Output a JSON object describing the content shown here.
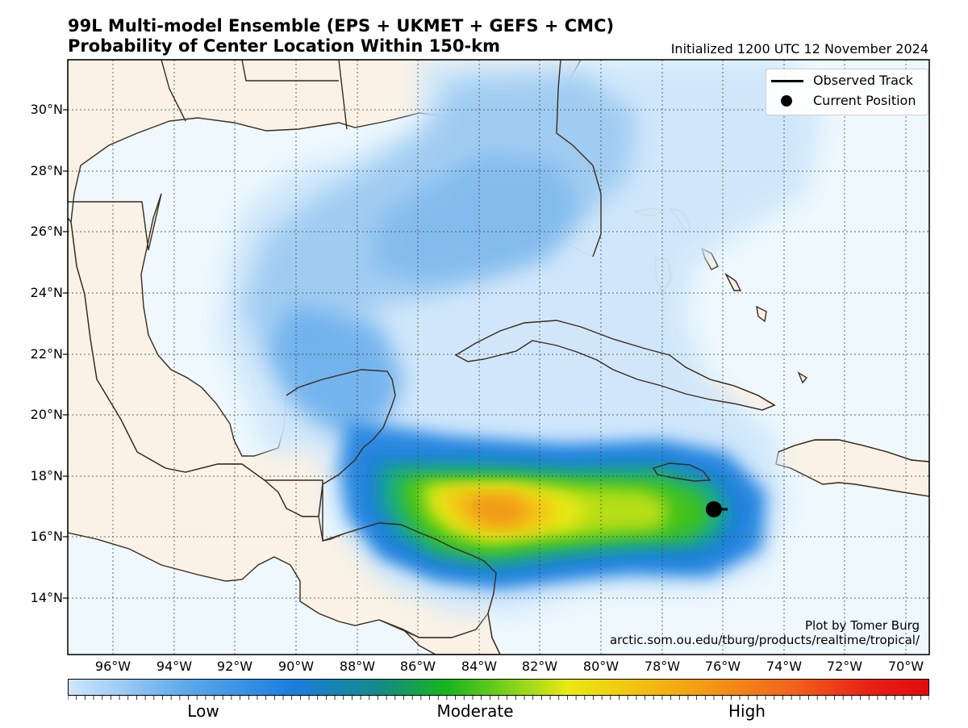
{
  "title_line1": "99L Multi-model Ensemble (EPS + UKMET + GEFS + CMC)",
  "title_line2": "Probability of Center Location Within 150-km",
  "initialized": "Initialized 1200 UTC 12 November 2024",
  "legend": {
    "observed_track": "Observed Track",
    "current_position": "Current Position"
  },
  "credit": {
    "line1": "Plot by Tomer Burg",
    "line2": "arctic.som.ou.edu/tburg/products/realtime/tropical/"
  },
  "lat_labels": [
    "30°N",
    "28°N",
    "26°N",
    "24°N",
    "22°N",
    "20°N",
    "18°N",
    "16°N",
    "14°N"
  ],
  "lon_labels": [
    "96°W",
    "94°W",
    "92°W",
    "90°W",
    "88°W",
    "86°W",
    "84°W",
    "82°W",
    "80°W",
    "78°W",
    "76°W",
    "74°W",
    "72°W",
    "70°W"
  ],
  "colorbar": {
    "low": "Low",
    "moderate": "Moderate",
    "high": "High"
  },
  "colors": {
    "land": "#faf2e6",
    "ocean": "#eef8fd",
    "coastline": "#3a2a1c",
    "high": "#e00c0c",
    "low": "#cfe7fb"
  },
  "current_position": {
    "lat": 16.9,
    "lon": -76.3
  }
}
